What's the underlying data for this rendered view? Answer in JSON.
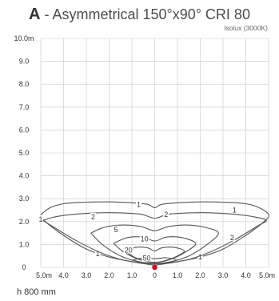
{
  "header": {
    "letter": "A",
    "rest": " - Asymmetrical 150°x90° CRI 80",
    "subtitle": "Isolux (3000K)"
  },
  "footer": {
    "height_note": "h 800 mm"
  },
  "chart_data": {
    "type": "isolux",
    "title": "A - Asymmetrical 150°x90° CRI 80",
    "subtitle": "Isolux (3000K)",
    "xlim": [
      -5.0,
      5.0
    ],
    "ylim": [
      0,
      10.0
    ],
    "x_ticks": [
      -5,
      -4,
      -3,
      -2,
      -1,
      0,
      1,
      2,
      3,
      4,
      5
    ],
    "x_tick_labels": [
      "5.0m",
      "4.0",
      "3.0",
      "2.0",
      "1.0",
      "0",
      "1.0",
      "2.0",
      "3.0",
      "4.0",
      "5.0m"
    ],
    "y_ticks": [
      0,
      1,
      2,
      3,
      4,
      5,
      6,
      7,
      8,
      9,
      10
    ],
    "y_tick_labels": [
      "0",
      "1.0",
      "2.0",
      "3.0",
      "4.0",
      "5.0",
      "6.0",
      "7.0",
      "8.0",
      "9.0",
      "10.0m"
    ],
    "grid": true,
    "source_point": {
      "x": 0,
      "y": 0,
      "color": "#e0001b"
    },
    "mounting_height": "h 800 mm",
    "contours": [
      {
        "level": "1",
        "label_points": [
          [
            -0.7,
            2.75
          ],
          [
            3.5,
            2.5
          ],
          [
            -5.0,
            2.1
          ],
          [
            -2.5,
            0.6
          ],
          [
            2.0,
            0.45
          ]
        ],
        "points": [
          [
            -5.0,
            2.3
          ],
          [
            -4.6,
            2.6
          ],
          [
            -4.0,
            2.78
          ],
          [
            -3.0,
            2.85
          ],
          [
            -2.0,
            2.86
          ],
          [
            -1.0,
            2.82
          ],
          [
            -0.3,
            2.75
          ],
          [
            0,
            2.6
          ],
          [
            0.3,
            2.75
          ],
          [
            1.0,
            2.82
          ],
          [
            2.0,
            2.86
          ],
          [
            3.0,
            2.85
          ],
          [
            4.0,
            2.78
          ],
          [
            4.6,
            2.6
          ],
          [
            5.0,
            2.3
          ],
          [
            4.8,
            2.0
          ],
          [
            4.0,
            1.4
          ],
          [
            3.0,
            0.8
          ],
          [
            2.0,
            0.45
          ],
          [
            1.0,
            0.25
          ],
          [
            0.4,
            0.15
          ],
          [
            0,
            0.1
          ],
          [
            -0.4,
            0.15
          ],
          [
            -1.0,
            0.25
          ],
          [
            -2.0,
            0.45
          ],
          [
            -3.0,
            0.8
          ],
          [
            -4.0,
            1.4
          ],
          [
            -4.8,
            2.0
          ],
          [
            -5.0,
            2.3
          ]
        ]
      },
      {
        "level": "2",
        "label_points": [
          [
            -2.7,
            2.2
          ],
          [
            0.5,
            2.3
          ],
          [
            3.4,
            1.3
          ]
        ],
        "points": [
          [
            -4.9,
            2.05
          ],
          [
            -4.4,
            2.2
          ],
          [
            -3.5,
            2.32
          ],
          [
            -2.5,
            2.38
          ],
          [
            -1.5,
            2.38
          ],
          [
            -0.6,
            2.32
          ],
          [
            0,
            2.15
          ],
          [
            0.6,
            2.32
          ],
          [
            1.5,
            2.38
          ],
          [
            2.5,
            2.38
          ],
          [
            3.5,
            2.32
          ],
          [
            4.4,
            2.2
          ],
          [
            4.9,
            2.05
          ],
          [
            4.5,
            1.8
          ],
          [
            3.5,
            1.2
          ],
          [
            2.5,
            0.7
          ],
          [
            1.5,
            0.35
          ],
          [
            0.6,
            0.2
          ],
          [
            0,
            0.15
          ],
          [
            -0.6,
            0.2
          ],
          [
            -1.5,
            0.35
          ],
          [
            -2.5,
            0.7
          ],
          [
            -3.5,
            1.2
          ],
          [
            -4.5,
            1.8
          ],
          [
            -4.9,
            2.05
          ]
        ]
      },
      {
        "level": "5",
        "label_points": [
          [
            -1.7,
            1.65
          ]
        ],
        "points": [
          [
            -2.8,
            1.5
          ],
          [
            -2.2,
            1.75
          ],
          [
            -1.4,
            1.85
          ],
          [
            -0.6,
            1.78
          ],
          [
            0,
            1.6
          ],
          [
            0.6,
            1.78
          ],
          [
            1.4,
            1.85
          ],
          [
            2.2,
            1.75
          ],
          [
            2.8,
            1.5
          ],
          [
            2.3,
            1.0
          ],
          [
            1.5,
            0.5
          ],
          [
            0.7,
            0.25
          ],
          [
            0,
            0.18
          ],
          [
            -0.7,
            0.25
          ],
          [
            -1.5,
            0.5
          ],
          [
            -2.3,
            1.0
          ],
          [
            -2.8,
            1.5
          ]
        ]
      },
      {
        "level": "10",
        "label_points": [
          [
            -0.45,
            1.25
          ]
        ],
        "points": [
          [
            -1.8,
            1.05
          ],
          [
            -1.2,
            1.3
          ],
          [
            -0.5,
            1.32
          ],
          [
            0,
            1.15
          ],
          [
            0.5,
            1.32
          ],
          [
            1.2,
            1.3
          ],
          [
            1.8,
            1.05
          ],
          [
            1.4,
            0.7
          ],
          [
            0.7,
            0.35
          ],
          [
            0,
            0.22
          ],
          [
            -0.7,
            0.35
          ],
          [
            -1.4,
            0.7
          ],
          [
            -1.8,
            1.05
          ]
        ]
      },
      {
        "level": "20",
        "label_points": [
          [
            -1.15,
            0.75
          ]
        ],
        "points": [
          [
            -1.3,
            0.72
          ],
          [
            -0.8,
            0.88
          ],
          [
            -0.3,
            0.85
          ],
          [
            0,
            0.72
          ],
          [
            0.3,
            0.85
          ],
          [
            0.8,
            0.88
          ],
          [
            1.3,
            0.72
          ],
          [
            0.9,
            0.45
          ],
          [
            0.4,
            0.28
          ],
          [
            0,
            0.22
          ],
          [
            -0.4,
            0.28
          ],
          [
            -0.9,
            0.45
          ],
          [
            -1.3,
            0.72
          ]
        ]
      },
      {
        "level": "50",
        "label_points": [
          [
            -0.35,
            0.4
          ]
        ],
        "points": [
          [
            -0.95,
            0.32
          ],
          [
            -0.5,
            0.42
          ],
          [
            0,
            0.38
          ],
          [
            0.5,
            0.42
          ],
          [
            0.95,
            0.32
          ],
          [
            0.5,
            0.2
          ],
          [
            0,
            0.16
          ],
          [
            -0.5,
            0.2
          ],
          [
            -0.95,
            0.32
          ]
        ]
      }
    ]
  }
}
